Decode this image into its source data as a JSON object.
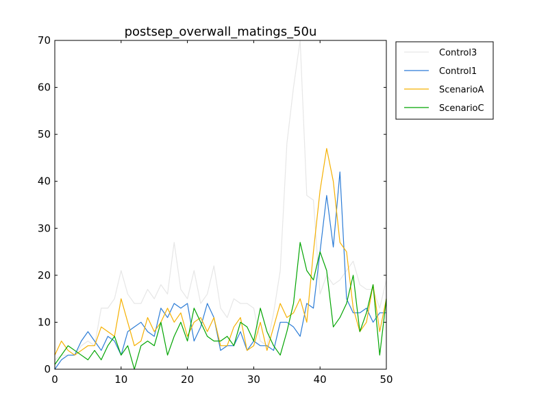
{
  "chart_data": {
    "type": "line",
    "title": "postsep_overwall_matings_50u",
    "xlabel": "",
    "ylabel": "",
    "xlim": [
      0,
      50
    ],
    "ylim": [
      0,
      70
    ],
    "x_ticks": [
      0,
      10,
      20,
      30,
      40,
      50
    ],
    "y_ticks": [
      0,
      10,
      20,
      30,
      40,
      50,
      60,
      70
    ],
    "grid": false,
    "legend_position": "outside-top-right",
    "x": [
      0,
      1,
      2,
      3,
      4,
      5,
      6,
      7,
      8,
      9,
      10,
      11,
      12,
      13,
      14,
      15,
      16,
      17,
      18,
      19,
      20,
      21,
      22,
      23,
      24,
      25,
      26,
      27,
      28,
      29,
      30,
      31,
      32,
      33,
      34,
      35,
      36,
      37,
      38,
      39,
      40,
      41,
      42,
      43,
      44,
      45,
      46,
      47,
      48,
      49,
      50
    ],
    "series": [
      {
        "name": "Control3",
        "color": "#e6e6e6",
        "values": [
          2,
          3,
          3,
          3,
          5,
          6,
          5,
          13,
          13,
          15,
          21,
          16,
          14,
          14,
          17,
          15,
          18,
          16,
          27,
          17,
          15,
          21,
          14,
          16,
          22,
          13,
          11,
          15,
          14,
          14,
          13,
          6,
          5,
          12,
          21,
          48,
          60,
          70,
          37,
          36,
          16,
          20,
          18,
          19,
          21,
          23,
          18,
          17,
          17,
          13,
          19
        ]
      },
      {
        "name": "Control1",
        "color": "#2a7bd6",
        "values": [
          0,
          2,
          3,
          3,
          6,
          8,
          6,
          4,
          7,
          6,
          3,
          8,
          9,
          10,
          8,
          7,
          13,
          11,
          14,
          13,
          14,
          6,
          9,
          14,
          11,
          4,
          5,
          5,
          8,
          4,
          6,
          5,
          5,
          4,
          10,
          10,
          9,
          7,
          14,
          13,
          25,
          37,
          26,
          42,
          15,
          12,
          12,
          13,
          10,
          12,
          12
        ]
      },
      {
        "name": "ScenarioA",
        "color": "#f5b000",
        "values": [
          3,
          6,
          4,
          3,
          4,
          5,
          5,
          9,
          8,
          7,
          15,
          10,
          5,
          6,
          11,
          8,
          10,
          13,
          10,
          12,
          7,
          10,
          11,
          8,
          11,
          5,
          5,
          9,
          11,
          4,
          5,
          10,
          4,
          9,
          14,
          11,
          12,
          15,
          10,
          25,
          38,
          47,
          40,
          27,
          25,
          13,
          8,
          10,
          18,
          8,
          15
        ]
      },
      {
        "name": "ScenarioC",
        "color": "#00a400",
        "values": [
          1,
          3,
          5,
          4,
          3,
          2,
          4,
          2,
          5,
          7,
          3,
          5,
          0,
          5,
          6,
          5,
          10,
          3,
          7,
          10,
          6,
          13,
          10,
          7,
          6,
          6,
          7,
          5,
          10,
          9,
          6,
          13,
          8,
          5,
          3,
          8,
          14,
          27,
          21,
          19,
          25,
          21,
          9,
          11,
          14,
          20,
          8,
          12,
          18,
          3,
          15
        ]
      }
    ]
  }
}
